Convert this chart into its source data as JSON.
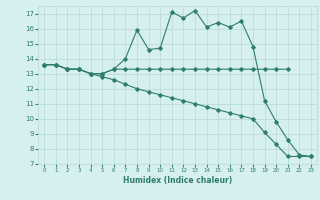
{
  "line1_x": [
    0,
    1,
    2,
    3,
    4,
    5,
    6,
    7,
    8,
    9,
    10,
    11,
    12,
    13,
    14,
    15,
    16,
    17,
    18,
    19,
    20,
    21,
    22,
    23
  ],
  "line1_y": [
    13.6,
    13.6,
    13.3,
    13.3,
    13.0,
    13.0,
    13.3,
    14.0,
    15.9,
    14.6,
    14.7,
    17.1,
    16.7,
    17.2,
    16.1,
    16.4,
    16.1,
    16.5,
    14.8,
    11.2,
    9.8,
    8.6,
    7.6,
    7.5
  ],
  "line2_x": [
    0,
    1,
    2,
    3,
    4,
    5,
    6,
    7,
    8,
    9,
    10,
    11,
    12,
    13,
    14,
    15,
    16,
    17,
    18,
    19,
    20,
    21
  ],
  "line2_y": [
    13.6,
    13.6,
    13.3,
    13.3,
    13.0,
    13.0,
    13.3,
    13.3,
    13.3,
    13.3,
    13.3,
    13.3,
    13.3,
    13.3,
    13.3,
    13.3,
    13.3,
    13.3,
    13.3,
    13.3,
    13.3,
    13.3
  ],
  "line3_x": [
    0,
    1,
    2,
    3,
    4,
    5,
    6,
    7,
    8,
    9,
    10,
    11,
    12,
    13,
    14,
    15,
    16,
    17,
    18,
    19,
    20,
    21,
    22,
    23
  ],
  "line3_y": [
    13.6,
    13.6,
    13.3,
    13.3,
    13.0,
    12.8,
    12.6,
    12.3,
    12.0,
    11.8,
    11.6,
    11.4,
    11.2,
    11.0,
    10.8,
    10.6,
    10.4,
    10.2,
    10.0,
    9.1,
    8.3,
    7.5,
    7.5,
    7.5
  ],
  "color": "#2e7d6e",
  "bg_color": "#d6efef",
  "grid_color": "#b8d8d8",
  "xlabel": "Humidex (Indice chaleur)",
  "xlim": [
    -0.5,
    23.5
  ],
  "ylim": [
    7,
    17.5
  ],
  "yticks": [
    7,
    8,
    9,
    10,
    11,
    12,
    13,
    14,
    15,
    16,
    17
  ],
  "xticks": [
    0,
    1,
    2,
    3,
    4,
    5,
    6,
    7,
    8,
    9,
    10,
    11,
    12,
    13,
    14,
    15,
    16,
    17,
    18,
    19,
    20,
    21,
    22,
    23
  ]
}
